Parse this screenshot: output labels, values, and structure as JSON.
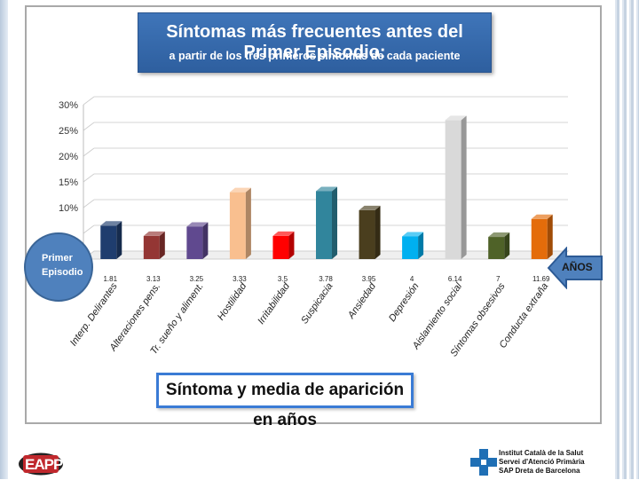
{
  "title": "Síntomas más frecuentes antes del Primer Episodio:",
  "subtitle": "a partir de los tres primeros síntomas de cada paciente",
  "episode_label_line1": "Primer",
  "episode_label_line2": "Episodio",
  "years_arrow_label": "AÑOS",
  "bottom_caption": "Síntoma y media de aparición en años",
  "footer": {
    "logo_text": "EAPP",
    "org_line1": "Institut Català de la Salut",
    "org_line2": "Servei d'Atenció Primària",
    "org_line3": "SAP Dreta de Barcelona"
  },
  "chart_data": {
    "type": "bar",
    "categories": [
      "Interp. Delirantes",
      "Alteraciones pens.",
      "Tr. sueño y aliment.",
      "Hostilidad",
      "Irritabilidad",
      "Suspicacia",
      "Ansiedad",
      "Depresión",
      "Aislamiento social",
      "Síntomas obsesivos",
      "Conducta extraña"
    ],
    "values": [
      6.5,
      4.5,
      6.3,
      13,
      4.5,
      13.2,
      9.5,
      4.4,
      27,
      4.3,
      7.8
    ],
    "year_labels": [
      "1.81",
      "3.13",
      "3.25",
      "3.33",
      "3.5",
      "3.78",
      "3.95",
      "4",
      "6.14",
      "7",
      "11.69"
    ],
    "colors": [
      "#1f3d6e",
      "#943634",
      "#60498f",
      "#f9bf8f",
      "#ff0000",
      "#31859c",
      "#4a3e1e",
      "#00b0f0",
      "#d9d9d9",
      "#4f6228",
      "#e46c0a"
    ],
    "yticks": [
      "30%",
      "25%",
      "20%",
      "15%",
      "10%"
    ],
    "ylim": [
      0,
      30
    ],
    "grid": true
  }
}
